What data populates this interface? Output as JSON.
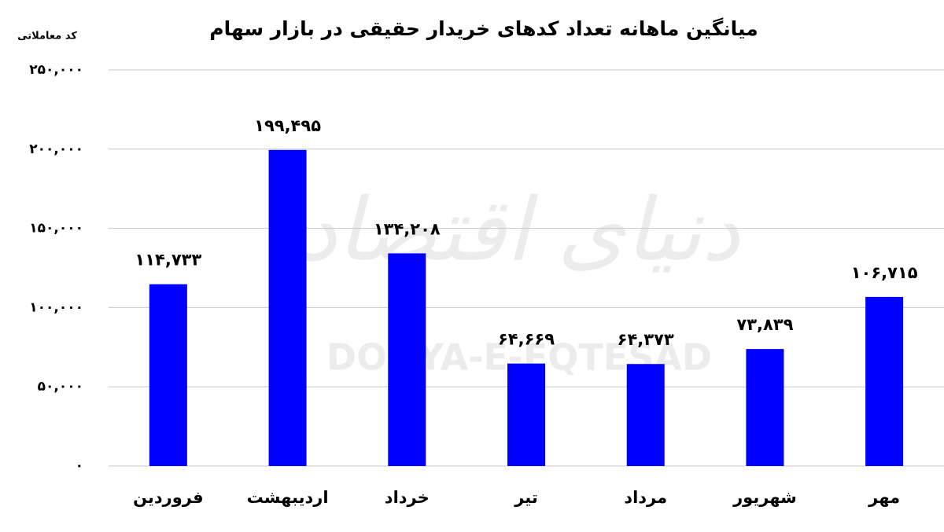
{
  "chart_data": {
    "type": "bar",
    "title": "میانگین ماهانه تعداد کدهای خریدار حقیقی در بازار سهام",
    "y_label": "کد معاملاتی",
    "watermark": "DONYA-E-EQTESAD",
    "watermark_fa": "دنیای اقتصاد",
    "categories": [
      "فروردین",
      "اردیبهشت",
      "خرداد",
      "تیر",
      "مرداد",
      "شهریور",
      "مهر"
    ],
    "values": [
      114733,
      199495,
      134208,
      64669,
      64373,
      73839,
      106715
    ],
    "value_labels": [
      "۱۱۴,۷۳۳",
      "۱۹۹,۴۹۵",
      "۱۳۴,۲۰۸",
      "۶۴,۶۶۹",
      "۶۴,۳۷۳",
      "۷۳,۸۳۹",
      "۱۰۶,۷۱۵"
    ],
    "color": "#0000ff",
    "ylim": [
      0,
      250000
    ],
    "yticks": [
      {
        "value": 0,
        "label": "۰"
      },
      {
        "value": 50000,
        "label": "۵۰,۰۰۰"
      },
      {
        "value": 100000,
        "label": "۱۰۰,۰۰۰"
      },
      {
        "value": 150000,
        "label": "۱۵۰,۰۰۰"
      },
      {
        "value": 200000,
        "label": "۲۰۰,۰۰۰"
      },
      {
        "value": 250000,
        "label": "۲۵۰,۰۰۰"
      }
    ],
    "grid": true
  }
}
